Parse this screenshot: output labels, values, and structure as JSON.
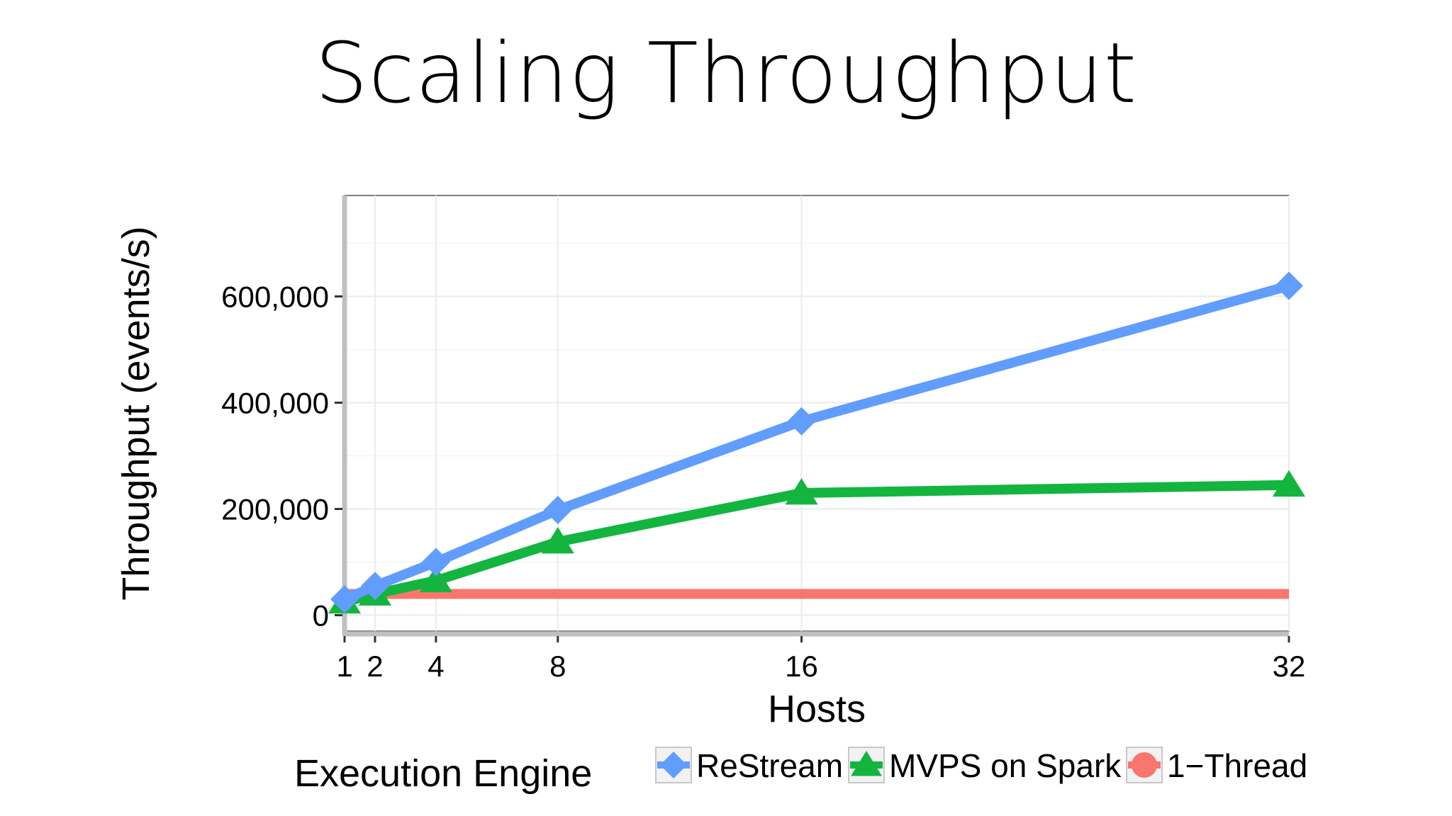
{
  "slide": {
    "title": "Scaling Throughput"
  },
  "chart_data": {
    "type": "line",
    "title": "",
    "xlabel": "Hosts",
    "ylabel": "Throughput (events/s)",
    "x": [
      1,
      2,
      4,
      8,
      16,
      32
    ],
    "x_ticks": [
      1,
      2,
      4,
      8,
      16,
      32
    ],
    "x_tick_labels": [
      "1",
      "2",
      "4",
      "8",
      "16",
      "32"
    ],
    "xlim": [
      1,
      32
    ],
    "y_ticks": [
      0,
      200000,
      400000,
      600000
    ],
    "y_tick_labels": [
      "0",
      "200,000",
      "400,000",
      "600,000"
    ],
    "ylim": [
      -30000,
      790000
    ],
    "grid": true,
    "legend": {
      "title": "Execution Engine",
      "placement": "bottom"
    },
    "series": [
      {
        "name": "ReStream",
        "marker": "diamond",
        "color": "#619cff",
        "x": [
          1,
          2,
          4,
          8,
          16,
          32
        ],
        "values": [
          30000,
          55000,
          100000,
          198000,
          365000,
          620000
        ]
      },
      {
        "name": "MVPS on Spark",
        "marker": "triangle",
        "color": "#14b53f",
        "x": [
          1,
          2,
          4,
          8,
          16,
          32
        ],
        "values": [
          25000,
          40000,
          65000,
          138000,
          230000,
          245000
        ]
      },
      {
        "name": "1−Thread",
        "marker": "circle",
        "color": "#f8766d",
        "x": [
          1,
          32
        ],
        "values": [
          40000,
          40000
        ]
      }
    ]
  }
}
